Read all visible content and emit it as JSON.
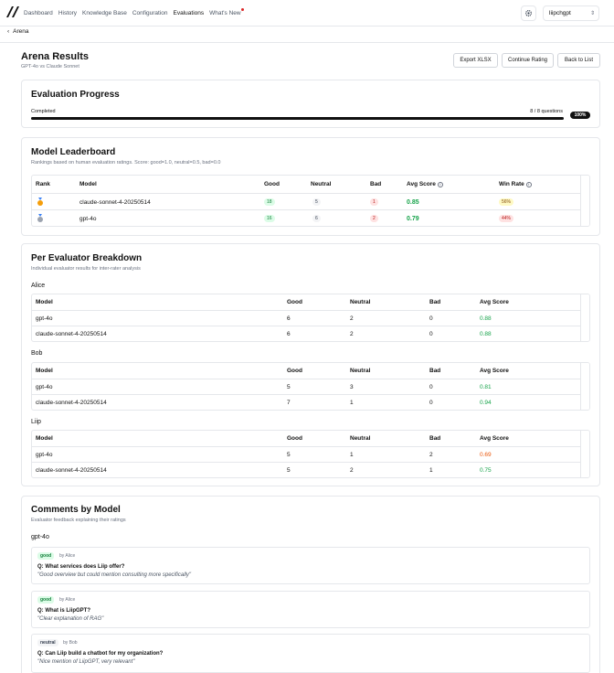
{
  "nav": {
    "items": [
      "Dashboard",
      "History",
      "Knowledge Base",
      "Configuration",
      "Evaluations",
      "What's New"
    ],
    "active": "Evaluations"
  },
  "org": {
    "value": "liipchgpt"
  },
  "back": {
    "label": "Arena"
  },
  "page": {
    "title": "Arena Results",
    "subtitle": "GPT-4o vs Claude Sonnet"
  },
  "actions": {
    "export": "Export XLSX",
    "continue": "Continue Rating",
    "back_to_list": "Back to List"
  },
  "progress": {
    "title": "Evaluation Progress",
    "status": "Completed",
    "count": "8 / 8 questions",
    "percent": "100%",
    "fraction": 1.0
  },
  "leaderboard": {
    "title": "Model Leaderboard",
    "subtitle": "Rankings based on human evaluation ratings. Score: good=1.0, neutral=0.5, bad=0.0",
    "headers": {
      "rank": "Rank",
      "model": "Model",
      "good": "Good",
      "neutral": "Neutral",
      "bad": "Bad",
      "avg": "Avg Score",
      "win": "Win Rate"
    },
    "rows": [
      {
        "medal": "gold-medal-icon",
        "model": "claude-sonnet-4-20250514",
        "good": "18",
        "neutral": "5",
        "bad": "1",
        "avg": "0.85",
        "win": "56%"
      },
      {
        "medal": "silver-medal-icon",
        "model": "gpt-4o",
        "good": "16",
        "neutral": "6",
        "bad": "2",
        "avg": "0.79",
        "win": "44%"
      }
    ]
  },
  "breakdown": {
    "title": "Per Evaluator Breakdown",
    "subtitle": "Individual evaluator results for inter-rater analysis",
    "headers": {
      "model": "Model",
      "good": "Good",
      "neutral": "Neutral",
      "bad": "Bad",
      "avg": "Avg Score"
    },
    "evaluators": [
      {
        "name": "Alice",
        "rows": [
          {
            "model": "gpt-4o",
            "good": "6",
            "neutral": "2",
            "bad": "0",
            "avg": "0.88"
          },
          {
            "model": "claude-sonnet-4-20250514",
            "good": "6",
            "neutral": "2",
            "bad": "0",
            "avg": "0.88"
          }
        ]
      },
      {
        "name": "Bob",
        "rows": [
          {
            "model": "gpt-4o",
            "good": "5",
            "neutral": "3",
            "bad": "0",
            "avg": "0.81"
          },
          {
            "model": "claude-sonnet-4-20250514",
            "good": "7",
            "neutral": "1",
            "bad": "0",
            "avg": "0.94"
          }
        ]
      },
      {
        "name": "Liip",
        "rows": [
          {
            "model": "gpt-4o",
            "good": "5",
            "neutral": "1",
            "bad": "2",
            "avg": "0.69"
          },
          {
            "model": "claude-sonnet-4-20250514",
            "good": "5",
            "neutral": "2",
            "bad": "1",
            "avg": "0.75"
          }
        ]
      }
    ]
  },
  "comments": {
    "title": "Comments by Model",
    "subtitle": "Evaluator feedback explaining their ratings",
    "group": "gpt-4o",
    "items": [
      {
        "rating": "good",
        "by": "by Alice",
        "question": "Q: What services does Liip offer?",
        "text": "\"Good overview but could mention consulting more specifically\""
      },
      {
        "rating": "good",
        "by": "by Alice",
        "question": "Q: What is LiipGPT?",
        "text": "\"Clear explanation of RAG\""
      },
      {
        "rating": "neutral",
        "by": "by Bob",
        "question": "Q: Can Liip build a chatbot for my organization?",
        "text": "\"Nice mention of LiipGPT, very relevant\""
      }
    ]
  },
  "colors": {
    "good": "#16a34a",
    "warn": "#ea580c",
    "accent": "#111111"
  }
}
